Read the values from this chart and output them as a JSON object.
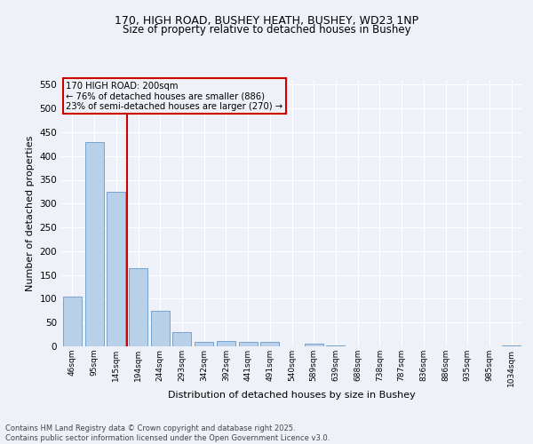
{
  "title_line1": "170, HIGH ROAD, BUSHEY HEATH, BUSHEY, WD23 1NP",
  "title_line2": "Size of property relative to detached houses in Bushey",
  "xlabel": "Distribution of detached houses by size in Bushey",
  "ylabel": "Number of detached properties",
  "bar_values": [
    105,
    430,
    325,
    165,
    75,
    30,
    10,
    12,
    10,
    10,
    0,
    5,
    1,
    0,
    0,
    0,
    0,
    0,
    0,
    0,
    1
  ],
  "categories": [
    "46sqm",
    "95sqm",
    "145sqm",
    "194sqm",
    "244sqm",
    "293sqm",
    "342sqm",
    "392sqm",
    "441sqm",
    "491sqm",
    "540sqm",
    "589sqm",
    "639sqm",
    "688sqm",
    "738sqm",
    "787sqm",
    "836sqm",
    "886sqm",
    "935sqm",
    "985sqm",
    "1034sqm"
  ],
  "bar_color": "#b8d0e8",
  "bar_edge_color": "#6699cc",
  "vline_x": 3.0,
  "vline_color": "#cc0000",
  "annotation_title": "170 HIGH ROAD: 200sqm",
  "annotation_line1": "← 76% of detached houses are smaller (886)",
  "annotation_line2": "23% of semi-detached houses are larger (270) →",
  "annotation_box_color": "#cc0000",
  "ylim": [
    0,
    560
  ],
  "yticks": [
    0,
    50,
    100,
    150,
    200,
    250,
    300,
    350,
    400,
    450,
    500,
    550
  ],
  "background_color": "#eef2f8",
  "grid_color": "#ffffff",
  "footer_line1": "Contains HM Land Registry data © Crown copyright and database right 2025.",
  "footer_line2": "Contains public sector information licensed under the Open Government Licence v3.0."
}
